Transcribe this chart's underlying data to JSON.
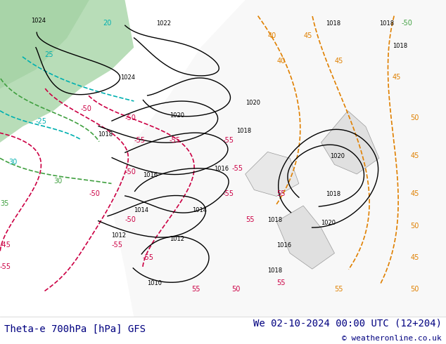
{
  "title_left": "Theta-e 700hPa [hPa] GFS",
  "title_right": "We 02-10-2024 00:00 UTC (12+204)",
  "copyright": "© weatheronline.co.uk",
  "bg_color": "#ffffff",
  "map_bg": "#e8f4e8",
  "fig_width": 6.34,
  "fig_height": 4.9,
  "dpi": 100,
  "bottom_bar_color": "#f0f0f0",
  "bottom_bar_height": 0.08,
  "title_fontsize": 10,
  "copy_fontsize": 8,
  "title_color": "#000080",
  "copy_color": "#000080"
}
